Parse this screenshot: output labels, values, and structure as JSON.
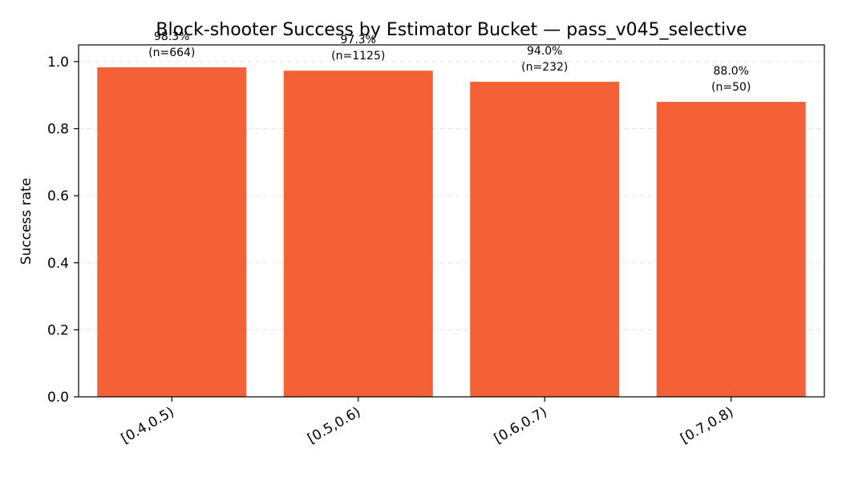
{
  "chart_data": {
    "type": "bar",
    "title": "Block-shooter Success by Estimator Bucket — pass_v045_selective",
    "xlabel": "",
    "ylabel": "Success rate",
    "categories": [
      "[0.4,0.5)",
      "[0.5,0.6)",
      "[0.6,0.7)",
      "[0.7,0.8)"
    ],
    "values": [
      0.983,
      0.973,
      0.94,
      0.88
    ],
    "data_labels": [
      {
        "pct": "98.3%",
        "n": "(n=664)"
      },
      {
        "pct": "97.3%",
        "n": "(n=1125)"
      },
      {
        "pct": "94.0%",
        "n": "(n=232)"
      },
      {
        "pct": "88.0%",
        "n": "(n=50)"
      }
    ],
    "ylim": [
      0,
      1.05
    ],
    "yticks": [
      0.0,
      0.2,
      0.4,
      0.6,
      0.8,
      1.0
    ],
    "ytick_labels": [
      "0.0",
      "0.2",
      "0.4",
      "0.6",
      "0.8",
      "1.0"
    ],
    "grid": "y, dashed",
    "bar_color": "#f46137",
    "grid_color": "#e5e5e5"
  }
}
